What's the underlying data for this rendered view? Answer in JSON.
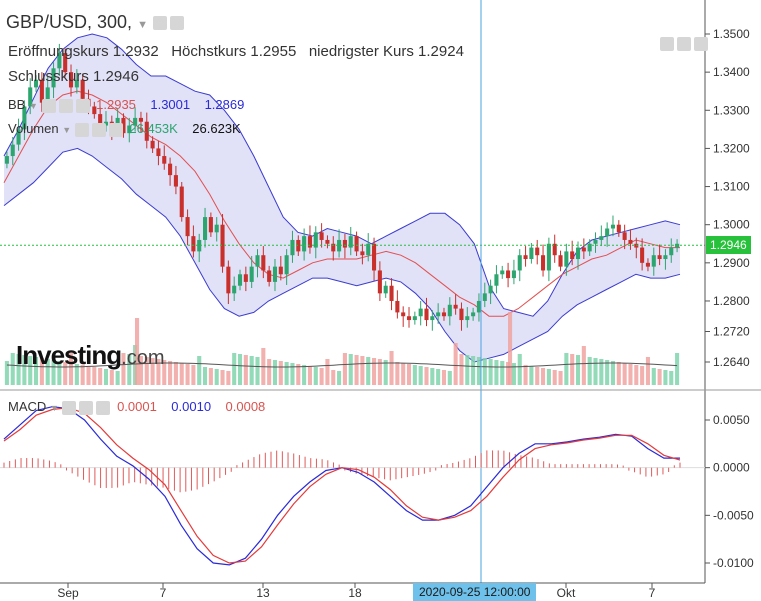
{
  "header": {
    "symbol": "GBP/USD, 300,",
    "open_label": "Eröffnungskurs",
    "open_value": "1.2932",
    "high_label": "Höchstkurs",
    "high_value": "1.2955",
    "low_label": "niedrigster Kurs",
    "low_value": "1.2924",
    "close_label": "Schlusskurs",
    "close_value": "1.2946"
  },
  "bb": {
    "label": "BB",
    "mid": "1.2935",
    "upper": "1.3001",
    "lower": "1.2869"
  },
  "volume": {
    "label": "Volumen",
    "v1": "26.453K",
    "v2": "26.623K"
  },
  "macd": {
    "label": "MACD",
    "hist": "0.0001",
    "macd": "0.0010",
    "signal": "0.0008"
  },
  "logo": {
    "main": "Investing",
    "suffix": ".com"
  },
  "price_tag": "1.2946",
  "crosshair_time": "2020-09-25 12:00:00",
  "x_ticks": [
    "Sep",
    "7",
    "13",
    "18",
    "Okt",
    "7"
  ],
  "colors": {
    "up": "#2da56f",
    "down": "#c9302c",
    "bb_band": "#3b3bd1",
    "bb_mid": "#e35050",
    "macd_line": "#2a2ad8",
    "signal_line": "#e33b3b",
    "price_line": "#27c13c",
    "crosshair": "#4aa3df"
  },
  "chart_data": [
    {
      "type": "candlestick",
      "title": "GBP/USD, 300",
      "y_ticks": [
        "1.3500",
        "1.3400",
        "1.3300",
        "1.3200",
        "1.3100",
        "1.3000",
        "1.2900",
        "1.2800",
        "1.2720",
        "1.2640"
      ],
      "ylim": [
        1.262,
        1.354
      ],
      "x_tick_labels": [
        "Sep",
        "7",
        "13",
        "18",
        "Okt",
        "7"
      ],
      "close": [
        1.318,
        1.321,
        1.325,
        1.331,
        1.336,
        1.338,
        1.332,
        1.336,
        1.341,
        1.345,
        1.34,
        1.336,
        1.338,
        1.333,
        1.331,
        1.329,
        1.326,
        1.327,
        1.325,
        1.328,
        1.324,
        1.326,
        1.328,
        1.327,
        1.322,
        1.32,
        1.318,
        1.316,
        1.313,
        1.31,
        1.302,
        1.297,
        1.293,
        1.296,
        1.302,
        1.298,
        1.3,
        1.289,
        1.282,
        1.284,
        1.287,
        1.285,
        1.289,
        1.292,
        1.288,
        1.285,
        1.289,
        1.287,
        1.292,
        1.296,
        1.293,
        1.297,
        1.294,
        1.298,
        1.296,
        1.295,
        1.293,
        1.296,
        1.294,
        1.297,
        1.293,
        1.292,
        1.295,
        1.288,
        1.282,
        1.284,
        1.28,
        1.277,
        1.276,
        1.275,
        1.276,
        1.278,
        1.275,
        1.276,
        1.277,
        1.276,
        1.279,
        1.278,
        1.275,
        1.276,
        1.277,
        1.28,
        1.282,
        1.284,
        1.287,
        1.288,
        1.286,
        1.288,
        1.292,
        1.291,
        1.294,
        1.292,
        1.288,
        1.295,
        1.292,
        1.289,
        1.293,
        1.291,
        1.294,
        1.293,
        1.295,
        1.296,
        1.297,
        1.299,
        1.3,
        1.298,
        1.296,
        1.295,
        1.294,
        1.29,
        1.289,
        1.292,
        1.291,
        1.292,
        1.294,
        1.295
      ],
      "upper_band": [
        1.318,
        1.325,
        1.333,
        1.341,
        1.346,
        1.349,
        1.35,
        1.349,
        1.346,
        1.342,
        1.339,
        1.339,
        1.337,
        1.335,
        1.334,
        1.33,
        1.325,
        1.318,
        1.31,
        1.302,
        1.298,
        1.297,
        1.299,
        1.298,
        1.297,
        1.295,
        1.297,
        1.299,
        1.301,
        1.303,
        1.303,
        1.3,
        1.295,
        1.284,
        1.278,
        1.277,
        1.276,
        1.28,
        1.287,
        1.293,
        1.296,
        1.297,
        1.298,
        1.299,
        1.3,
        1.301,
        1.3
      ],
      "middle_band": [
        1.311,
        1.318,
        1.325,
        1.331,
        1.334,
        1.335,
        1.334,
        1.332,
        1.329,
        1.326,
        1.323,
        1.321,
        1.318,
        1.314,
        1.308,
        1.301,
        1.295,
        1.29,
        1.287,
        1.286,
        1.288,
        1.29,
        1.291,
        1.291,
        1.291,
        1.292,
        1.293,
        1.292,
        1.29,
        1.287,
        1.284,
        1.281,
        1.279,
        1.276,
        1.276,
        1.278,
        1.281,
        1.284,
        1.287,
        1.289,
        1.291,
        1.292,
        1.294,
        1.296,
        1.295,
        1.294,
        1.294
      ],
      "lower_band": [
        1.305,
        1.308,
        1.311,
        1.315,
        1.319,
        1.32,
        1.318,
        1.315,
        1.312,
        1.308,
        1.305,
        1.302,
        1.297,
        1.29,
        1.283,
        1.278,
        1.276,
        1.277,
        1.28,
        1.282,
        1.284,
        1.286,
        1.286,
        1.285,
        1.284,
        1.285,
        1.286,
        1.285,
        1.282,
        1.278,
        1.272,
        1.267,
        1.264,
        1.265,
        1.266,
        1.268,
        1.27,
        1.272,
        1.276,
        1.279,
        1.281,
        1.283,
        1.285,
        1.287,
        1.286,
        1.286,
        1.287
      ]
    },
    {
      "type": "line",
      "title": "MACD",
      "y_ticks": [
        "0.0050",
        "0.0000",
        "-0.0050",
        "-0.0100"
      ],
      "ylim": [
        -0.011,
        0.0065
      ],
      "series": [
        {
          "name": "MACD",
          "values": [
            0.003,
            0.0045,
            0.006,
            0.0064,
            0.0062,
            0.005,
            0.003,
            0.0012,
            0.0002,
            -0.0012,
            -0.003,
            -0.006,
            -0.0085,
            -0.01,
            -0.0102,
            -0.0095,
            -0.0075,
            -0.005,
            -0.003,
            -0.0015,
            -0.0003,
            0.0,
            -0.0005,
            -0.0015,
            -0.003,
            -0.0045,
            -0.0055,
            -0.0055,
            -0.005,
            -0.004,
            -0.002,
            0.0,
            0.0015,
            0.0025,
            0.0025,
            0.0027,
            0.003,
            0.0032,
            0.0035,
            0.0033,
            0.002,
            0.001,
            0.001
          ]
        },
        {
          "name": "Signal",
          "values": [
            0.0028,
            0.004,
            0.0055,
            0.0061,
            0.0063,
            0.0057,
            0.0042,
            0.0024,
            0.001,
            -0.0002,
            -0.0018,
            -0.0045,
            -0.0072,
            -0.0092,
            -0.01,
            -0.0098,
            -0.0083,
            -0.006,
            -0.0038,
            -0.002,
            -0.0007,
            0.0,
            -0.0002,
            -0.001,
            -0.0023,
            -0.004,
            -0.0052,
            -0.0055,
            -0.0052,
            -0.0045,
            -0.003,
            -0.001,
            0.0008,
            0.002,
            0.0024,
            0.0026,
            0.0029,
            0.0031,
            0.0034,
            0.0034,
            0.0025,
            0.0013,
            0.0008
          ]
        }
      ]
    }
  ]
}
